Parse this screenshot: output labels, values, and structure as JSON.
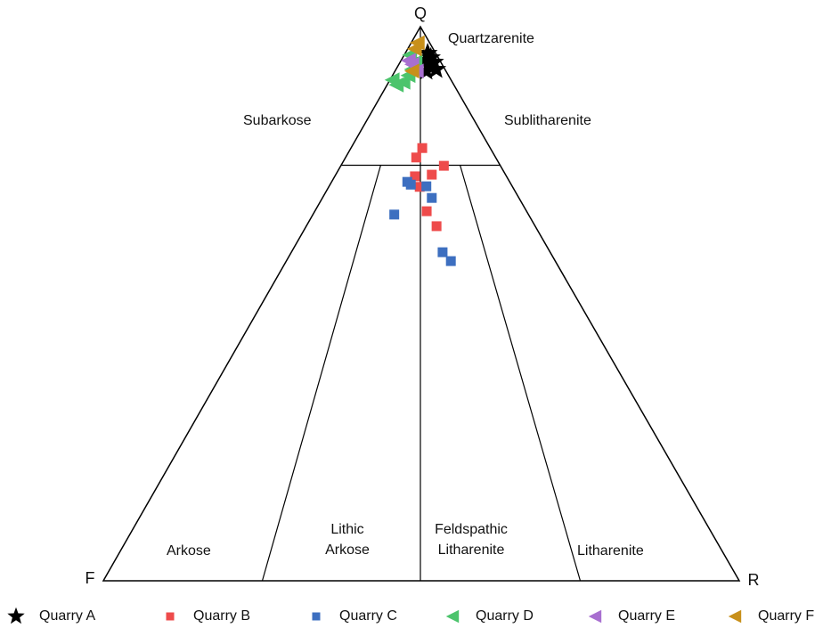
{
  "chart_data": {
    "type": "ternary",
    "vertices": {
      "top": "Q",
      "left": "F",
      "right": "R"
    },
    "fields": {
      "quartzarenite": "Quartzarenite",
      "subarkose": "Subarkose",
      "sublitharenite": "Sublitharenite",
      "arkose": "Arkose",
      "lithic_arkose": [
        "Lithic",
        "Arkose"
      ],
      "feldspathic_litharenite": [
        "Feldspathic",
        "Litharenite"
      ],
      "litharenite": "Litharenite"
    },
    "series": [
      {
        "name": "Quarry A",
        "marker": "star",
        "color": "#000000",
        "q": [
          95.2,
          94.4,
          93.9,
          93.6,
          92.9,
          92.3,
          92.0
        ],
        "f": [
          1.4,
          1.3,
          2.3,
          1.2,
          2.3,
          1.5,
          3.2
        ],
        "r": [
          3.4,
          4.3,
          3.8,
          5.2,
          4.8,
          6.2,
          4.8
        ]
      },
      {
        "name": "Quarry B",
        "marker": "square",
        "color": "#ee4b4b",
        "q": [
          78.1,
          76.4,
          74.9,
          73.0,
          73.3,
          71.1,
          66.7,
          64.0
        ],
        "f": [
          10.8,
          12.6,
          9.0,
          14.5,
          11.7,
          14.7,
          15.8,
          15.6
        ],
        "r": [
          11.1,
          11.0,
          16.1,
          12.5,
          15.0,
          14.2,
          17.5,
          20.4
        ]
      },
      {
        "name": "Quarry C",
        "marker": "square",
        "color": "#3d6fc0",
        "q": [
          72.0,
          71.5,
          71.2,
          69.1,
          66.1,
          59.3,
          57.7
        ],
        "f": [
          16.2,
          15.9,
          13.6,
          13.8,
          21.2,
          17.0,
          16.5
        ],
        "r": [
          11.8,
          12.6,
          15.2,
          17.1,
          12.7,
          23.7,
          25.8
        ]
      },
      {
        "name": "Quarry D",
        "marker": "triangle-left",
        "color": "#4cc46c",
        "q": [
          89.5,
          90.0,
          90.4,
          91.2,
          92.3,
          93.6,
          94.9
        ],
        "f": [
          9.2,
          7.9,
          9.4,
          6.5,
          5.4,
          4.2,
          4.4
        ],
        "r": [
          1.3,
          2.1,
          0.2,
          2.3,
          2.3,
          2.2,
          0.7
        ]
      },
      {
        "name": "Quarry E",
        "marker": "triangle-left",
        "color": "#a86fd0",
        "q": [
          93.2,
          92.0,
          93.9
        ],
        "f": [
          4.9,
          4.8,
          5.1
        ],
        "r": [
          1.9,
          3.2,
          1.0
        ]
      },
      {
        "name": "Quarry F",
        "marker": "triangle-left",
        "color": "#c8901a",
        "q": [
          97.1,
          96.0,
          92.0
        ],
        "f": [
          2.1,
          3.1,
          5.5
        ],
        "r": [
          0.8,
          0.9,
          2.5
        ]
      }
    ]
  }
}
